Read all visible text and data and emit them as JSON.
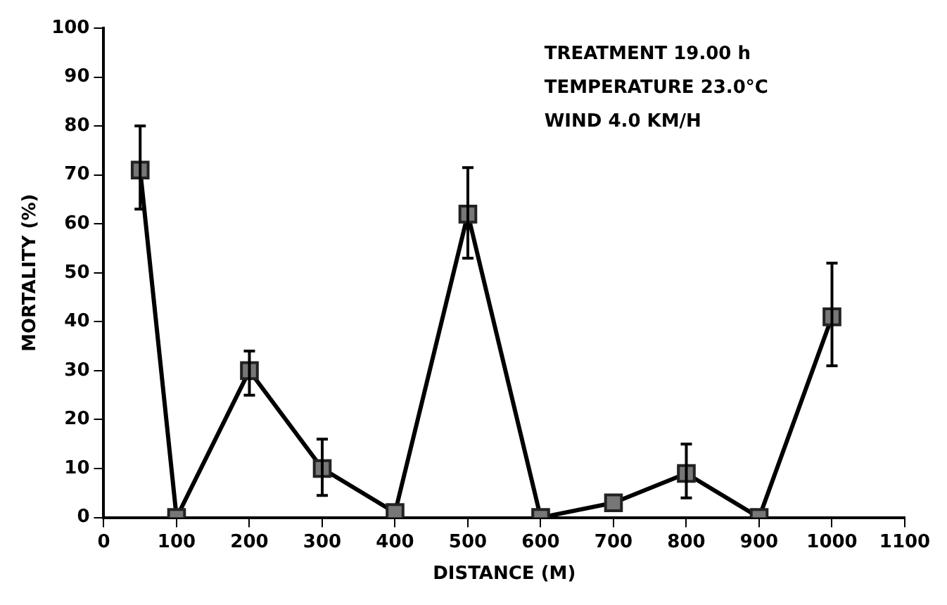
{
  "chart_data": {
    "type": "line",
    "xlabel": "DISTANCE (M)",
    "ylabel": "MORTALITY (%)",
    "x": [
      50,
      100,
      200,
      300,
      400,
      500,
      600,
      700,
      800,
      900,
      1000
    ],
    "series": [
      {
        "color": "#000000",
        "values": [
          71,
          0,
          30,
          10,
          1,
          62,
          0,
          3,
          9,
          0,
          41
        ],
        "errors": [
          [
            63,
            80
          ],
          null,
          [
            25,
            34
          ],
          [
            4.5,
            16
          ],
          null,
          [
            53,
            71.5
          ],
          null,
          null,
          [
            4,
            15
          ],
          null,
          [
            31,
            52
          ]
        ]
      }
    ],
    "xlim": [
      0,
      1100
    ],
    "xticks": [
      0,
      100,
      200,
      300,
      400,
      500,
      600,
      700,
      800,
      900,
      1000,
      1100
    ],
    "ylim": [
      0,
      100
    ],
    "yticks": [
      0,
      10,
      20,
      30,
      40,
      50,
      60,
      70,
      80,
      90,
      100
    ],
    "marker": "square",
    "line_style": "solid",
    "grid": false,
    "legend": false,
    "annotations": [
      "TREATMENT 19.00 h",
      "TEMPERATURE 23.0°C",
      "WIND 4.0 KM/H"
    ]
  }
}
